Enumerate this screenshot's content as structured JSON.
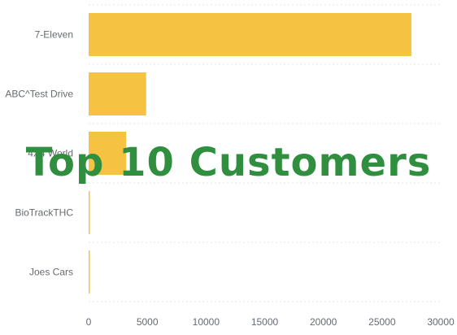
{
  "overlay": {
    "title": "Top 10 Customers"
  },
  "colors": {
    "bar": "#f5c242",
    "title": "#2f8f3f"
  },
  "chart_data": {
    "type": "bar",
    "orientation": "horizontal",
    "title": "Top 10 Customers",
    "categories": [
      "7-Eleven",
      "ABC^Test Drive",
      "4X4 World",
      "BioTrackTHC",
      "Joes Cars"
    ],
    "values": [
      27500,
      4900,
      3200,
      80,
      60
    ],
    "xlabel": "",
    "ylabel": "",
    "xlim": [
      0,
      30000
    ],
    "xticks": [
      "0",
      "5000",
      "10000",
      "15000",
      "20000",
      "25000",
      "30000"
    ],
    "grid": true,
    "legend": "none"
  }
}
